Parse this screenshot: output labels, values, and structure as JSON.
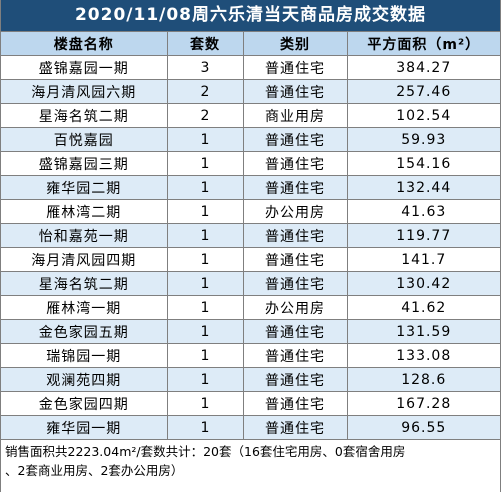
{
  "title": "2020/11/08周六乐清当天商品房成交数据",
  "headers": [
    "楼盘名称",
    "套数",
    "类别",
    "平方面积（m²）"
  ],
  "rows": [
    {
      "name": "盛锦嘉园一期",
      "count": "3",
      "type": "普通住宅",
      "area": "384.27"
    },
    {
      "name": "海月清风园六期",
      "count": "2",
      "type": "普通住宅",
      "area": "257.46"
    },
    {
      "name": "星海名筑二期",
      "count": "2",
      "type": "商业用房",
      "area": "102.54"
    },
    {
      "name": "百悦嘉园",
      "count": "1",
      "type": "普通住宅",
      "area": "59.93"
    },
    {
      "name": "盛锦嘉园三期",
      "count": "1",
      "type": "普通住宅",
      "area": "154.16"
    },
    {
      "name": "雍华园二期",
      "count": "1",
      "type": "普通住宅",
      "area": "132.44"
    },
    {
      "name": "雁林湾二期",
      "count": "1",
      "type": "办公用房",
      "area": "41.63"
    },
    {
      "name": "怡和嘉苑一期",
      "count": "1",
      "type": "普通住宅",
      "area": "119.77"
    },
    {
      "name": "海月清风园四期",
      "count": "1",
      "type": "普通住宅",
      "area": "141.7"
    },
    {
      "name": "星海名筑二期",
      "count": "1",
      "type": "普通住宅",
      "area": "130.42"
    },
    {
      "name": "雁林湾一期",
      "count": "1",
      "type": "办公用房",
      "area": "41.62"
    },
    {
      "name": "金色家园五期",
      "count": "1",
      "type": "普通住宅",
      "area": "131.59"
    },
    {
      "name": "瑞锦园一期",
      "count": "1",
      "type": "普通住宅",
      "area": "133.08"
    },
    {
      "name": "观澜苑四期",
      "count": "1",
      "type": "普通住宅",
      "area": "128.6"
    },
    {
      "name": "金色家园四期",
      "count": "1",
      "type": "普通住宅",
      "area": "167.28"
    },
    {
      "name": "雍华园一期",
      "count": "1",
      "type": "普通住宅",
      "area": "96.55"
    }
  ],
  "footer": {
    "line1": "销售面积共2223.04m²/套数共计：20套（16套住宅用房、0套宿舍用房",
    "line2": "、2套商业用房、2套办公用房）"
  },
  "colors": {
    "title_bg": "#1f4e79",
    "header_bg": "#bdd7ee",
    "alt_row_bg": "#ddebf7",
    "border": "#7f7f7f"
  }
}
